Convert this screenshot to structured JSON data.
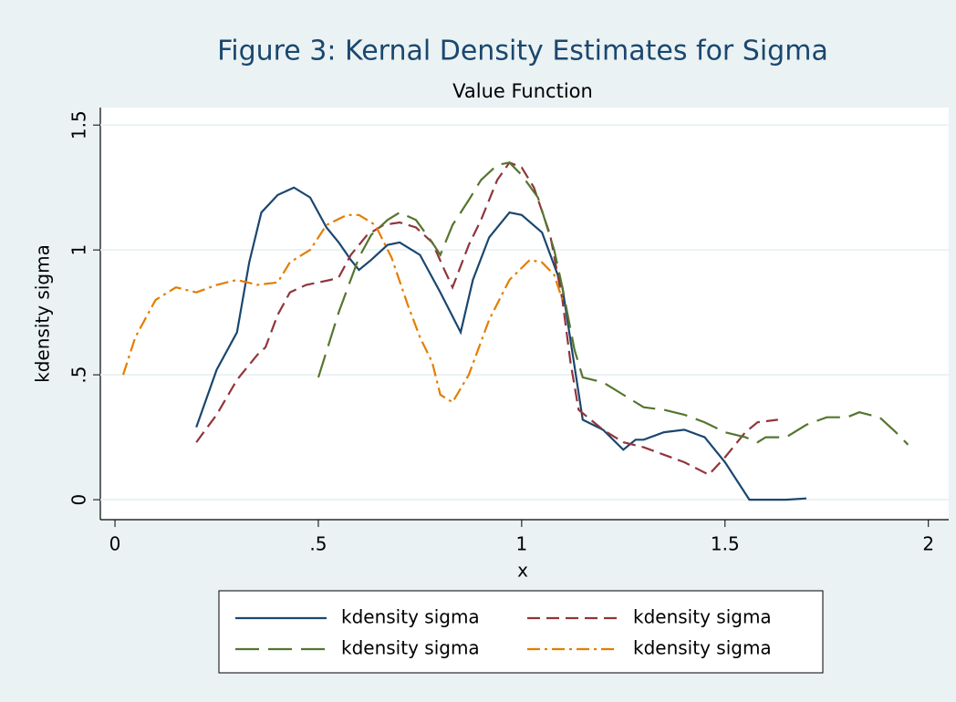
{
  "chart_data": {
    "type": "line",
    "title": "Figure 3: Kernal Density Estimates for Sigma",
    "subtitle": "Value Function",
    "x_label": "x",
    "y_label": "kdensity sigma",
    "xlim": [
      -0.036,
      2.05
    ],
    "ylim": [
      -0.08,
      1.57
    ],
    "xticks": [
      0,
      {
        "value": 0.5,
        "label": ".5"
      },
      1,
      1.5,
      2
    ],
    "yticks": [
      0,
      {
        "value": 0.5,
        "label": ".5"
      },
      1,
      1.5
    ],
    "grid": true,
    "series": [
      {
        "name": "kdensity sigma",
        "color": "#1a476f",
        "dash": "solid",
        "x": [
          0.2,
          0.25,
          0.3,
          0.33,
          0.36,
          0.4,
          0.44,
          0.48,
          0.52,
          0.55,
          0.58,
          0.6,
          0.63,
          0.67,
          0.7,
          0.75,
          0.8,
          0.85,
          0.88,
          0.92,
          0.97,
          1.0,
          1.05,
          1.1,
          1.15,
          1.2,
          1.25,
          1.28,
          1.3,
          1.35,
          1.4,
          1.45,
          1.5,
          1.56,
          1.6,
          1.65,
          1.7
        ],
        "values": [
          0.29,
          0.52,
          0.67,
          0.95,
          1.15,
          1.22,
          1.25,
          1.21,
          1.09,
          1.03,
          0.96,
          0.92,
          0.96,
          1.02,
          1.03,
          0.98,
          0.83,
          0.67,
          0.88,
          1.05,
          1.15,
          1.14,
          1.07,
          0.85,
          0.32,
          0.28,
          0.2,
          0.24,
          0.24,
          0.27,
          0.28,
          0.25,
          0.15,
          0.0,
          0.0,
          0.0,
          0.005
        ]
      },
      {
        "name": "kdensity sigma",
        "color": "#90353b",
        "dash": "14 7",
        "x": [
          0.2,
          0.25,
          0.3,
          0.35,
          0.37,
          0.4,
          0.43,
          0.47,
          0.5,
          0.53,
          0.55,
          0.58,
          0.62,
          0.66,
          0.7,
          0.74,
          0.78,
          0.81,
          0.83,
          0.87,
          0.9,
          0.94,
          0.97,
          1.0,
          1.03,
          1.07,
          1.1,
          1.12,
          1.14,
          1.2,
          1.25,
          1.3,
          1.35,
          1.4,
          1.46,
          1.5,
          1.55,
          1.58,
          1.63
        ],
        "values": [
          0.23,
          0.34,
          0.48,
          0.58,
          0.61,
          0.74,
          0.83,
          0.86,
          0.87,
          0.88,
          0.89,
          0.98,
          1.06,
          1.1,
          1.11,
          1.09,
          1.03,
          0.92,
          0.85,
          1.02,
          1.12,
          1.28,
          1.35,
          1.33,
          1.25,
          1.06,
          0.8,
          0.55,
          0.36,
          0.28,
          0.23,
          0.21,
          0.18,
          0.15,
          0.1,
          0.17,
          0.27,
          0.31,
          0.32
        ]
      },
      {
        "name": "kdensity sigma",
        "color": "#55752f",
        "dash": "26 10",
        "x": [
          0.5,
          0.55,
          0.6,
          0.63,
          0.67,
          0.7,
          0.74,
          0.78,
          0.8,
          0.83,
          0.87,
          0.9,
          0.94,
          0.97,
          1.0,
          1.04,
          1.08,
          1.1,
          1.13,
          1.15,
          1.2,
          1.25,
          1.3,
          1.35,
          1.4,
          1.45,
          1.5,
          1.55,
          1.58,
          1.6,
          1.65,
          1.7,
          1.75,
          1.8,
          1.83,
          1.88,
          1.92,
          1.95
        ],
        "values": [
          0.49,
          0.75,
          0.97,
          1.06,
          1.12,
          1.15,
          1.12,
          1.03,
          0.98,
          1.1,
          1.2,
          1.28,
          1.34,
          1.35,
          1.3,
          1.21,
          1.0,
          0.85,
          0.6,
          0.49,
          0.47,
          0.42,
          0.37,
          0.36,
          0.34,
          0.31,
          0.27,
          0.25,
          0.23,
          0.25,
          0.25,
          0.3,
          0.33,
          0.33,
          0.35,
          0.33,
          0.27,
          0.22
        ]
      },
      {
        "name": "kdensity sigma",
        "color": "#e37e00",
        "dash": "14 5 3 5",
        "x": [
          0.02,
          0.05,
          0.1,
          0.15,
          0.2,
          0.25,
          0.3,
          0.35,
          0.4,
          0.43,
          0.48,
          0.52,
          0.57,
          0.6,
          0.64,
          0.68,
          0.72,
          0.75,
          0.78,
          0.8,
          0.83,
          0.87,
          0.92,
          0.97,
          1.02,
          1.05,
          1.08,
          1.1
        ],
        "values": [
          0.5,
          0.65,
          0.8,
          0.85,
          0.83,
          0.86,
          0.88,
          0.86,
          0.87,
          0.95,
          1.0,
          1.1,
          1.14,
          1.14,
          1.1,
          0.97,
          0.78,
          0.65,
          0.55,
          0.42,
          0.39,
          0.5,
          0.72,
          0.88,
          0.96,
          0.95,
          0.9,
          0.8
        ]
      }
    ]
  }
}
